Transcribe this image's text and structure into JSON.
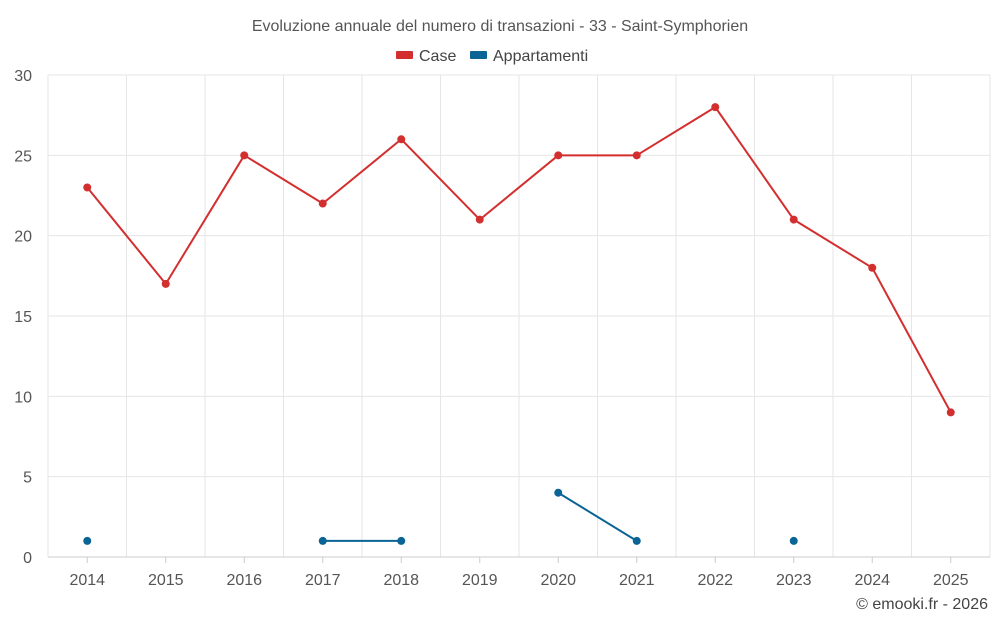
{
  "chart_data": {
    "type": "line",
    "title": "Evoluzione annuale del numero di transazioni - 33 - Saint-Symphorien",
    "categories": [
      "2014",
      "2015",
      "2016",
      "2017",
      "2018",
      "2019",
      "2020",
      "2021",
      "2022",
      "2023",
      "2024",
      "2025"
    ],
    "ylim": [
      0,
      30
    ],
    "yticks": [
      0,
      5,
      10,
      15,
      20,
      25,
      30
    ],
    "grid": true,
    "legend_position": "top-center",
    "series": [
      {
        "name": "Case",
        "color": "#d32f2f",
        "values": [
          23,
          17,
          25,
          22,
          26,
          21,
          25,
          25,
          28,
          21,
          18,
          9
        ]
      },
      {
        "name": "Appartamenti",
        "color": "#0a6496",
        "values": [
          1,
          null,
          null,
          1,
          1,
          null,
          4,
          1,
          null,
          1,
          null,
          null
        ]
      }
    ]
  },
  "credit": "© emooki.fr - 2026"
}
